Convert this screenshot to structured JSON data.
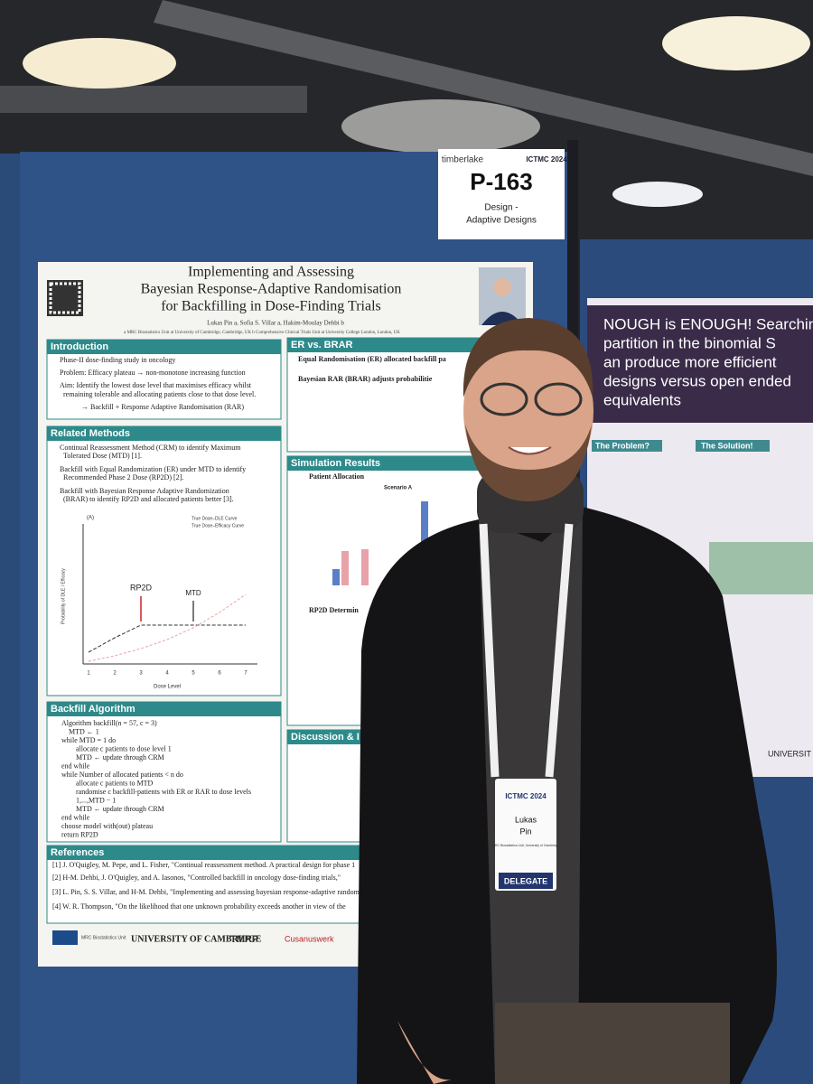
{
  "sign": {
    "venue": "timberlake",
    "conference": "ICTMC 2024",
    "code": "P-163",
    "track_1": "Design -",
    "track_2": "Adaptive Designs"
  },
  "poster": {
    "title": [
      "Implementing and Assessing",
      "Bayesian Response-Adaptive Randomisation",
      "for Backfilling in Dose-Finding Trials"
    ],
    "authors": "Lukas Pin a, Sofia S. Villar a, Hakim-Moulay Dehbi b",
    "affiliations": "a MRC Biostatistics Unit at University of Cambridge, Cambridge, UK  b Comprehensive Clinical Trials Unit at University College London, London, UK",
    "sections": {
      "introduction": "Introduction",
      "related": "Related Methods",
      "backfill": "Backfill Algorithm",
      "references": "References",
      "er_brar": "ER vs. BRAR",
      "simulation": "Simulation Results",
      "discussion": "Discussion & I"
    },
    "intro_items": [
      "Phase-II dose-finding study in oncology",
      "Problem: Efficacy plateau → non-monotone increasing function",
      "Aim: Identify the lowest dose level that maximises efficacy whilst",
      "remaining tolerable and allocating patients close to that dose level.",
      "→ Backfill + Response Adaptive Randomisation (RAR)"
    ],
    "related_items": [
      "Continual Reassessment Method (CRM) to identify Maximum",
      "Tolerated Dose (MTD) [1].",
      "Backfill with Equal Randomization (ER) under MTD to identify",
      "Recommended Phase 2 Dose (RP2D) [2].",
      "Backfill with Bayesian Response Adaptive Randomization",
      "(BRAR) to identify RP2D and allocated patients better [3]."
    ],
    "plot": {
      "panel": "(A)",
      "legend": [
        "True Dose–DLE Curve",
        "True Dose–Efficacy Curve"
      ],
      "rp2d": "RP2D",
      "mtd": "MTD",
      "xlabel": "Dose Level",
      "ylabel": "Probability of DLE / Efficacy",
      "xticks": [
        "1",
        "2",
        "3",
        "4",
        "5",
        "6",
        "7"
      ]
    },
    "algorithm": [
      "Algorithm backfill(n = 57, c = 3)",
      "MTD ← 1",
      "while MTD = 1 do",
      "allocate c patients to dose level 1",
      "MTD ← update through CRM",
      "end while",
      "while Number of allocated patients < n do",
      "allocate c patients to MTD",
      "randomise c backfill-patients with ER or RAR to dose levels",
      "1,...,MTD − 1",
      "MTD ← update through CRM",
      "end while",
      "choose model with(out) plateau",
      "return RP2D"
    ],
    "er_items": [
      "Equal Randomisation (ER) allocated backfill pa",
      "Bayesian RAR (BRAR) adjusts probabilitie"
    ],
    "sim_items": [
      "Patient Allocation",
      "Scenario A",
      "RP2D Determin"
    ],
    "refs": [
      "[1] J. O'Quigley, M. Pepe, and L. Fisher, \"Continual reassessment method. A practical design for phase 1",
      "[2] H-M. Dehbi, J. O'Quigley, and A. Iasonos, \"Controlled backfill in oncology dose-finding trials,\"",
      "[3] L. Pin, S. S. Villar, and H-M. Dehbi, \"Implementing and assessing bayesian response-adaptive randomis",
      "[4] W. R. Thompson, \"On the likelihood that one unknown probability exceeds another in view of the"
    ],
    "logos": [
      "MRC Biostatistics Unit",
      "UNIVERSITY OF CAMBRIDGE",
      "TMRP",
      "Cusanuswerk"
    ]
  },
  "neighbour": {
    "headline": [
      "NOUGH is ENOUGH! Searchin",
      "partition in the binomial S",
      "an produce more efficient",
      "designs versus open ended",
      "equivalents"
    ],
    "problem": "The Problem?",
    "solution": "The Solution!",
    "footer": "UNIVERSIT BIRMINGH"
  },
  "badge": {
    "conference": "ICTMC 2024",
    "first": "Lukas",
    "last": "Pin",
    "affiliation": "MRC Biostatistics Unit, University of Cambridge",
    "role": "DELEGATE"
  }
}
